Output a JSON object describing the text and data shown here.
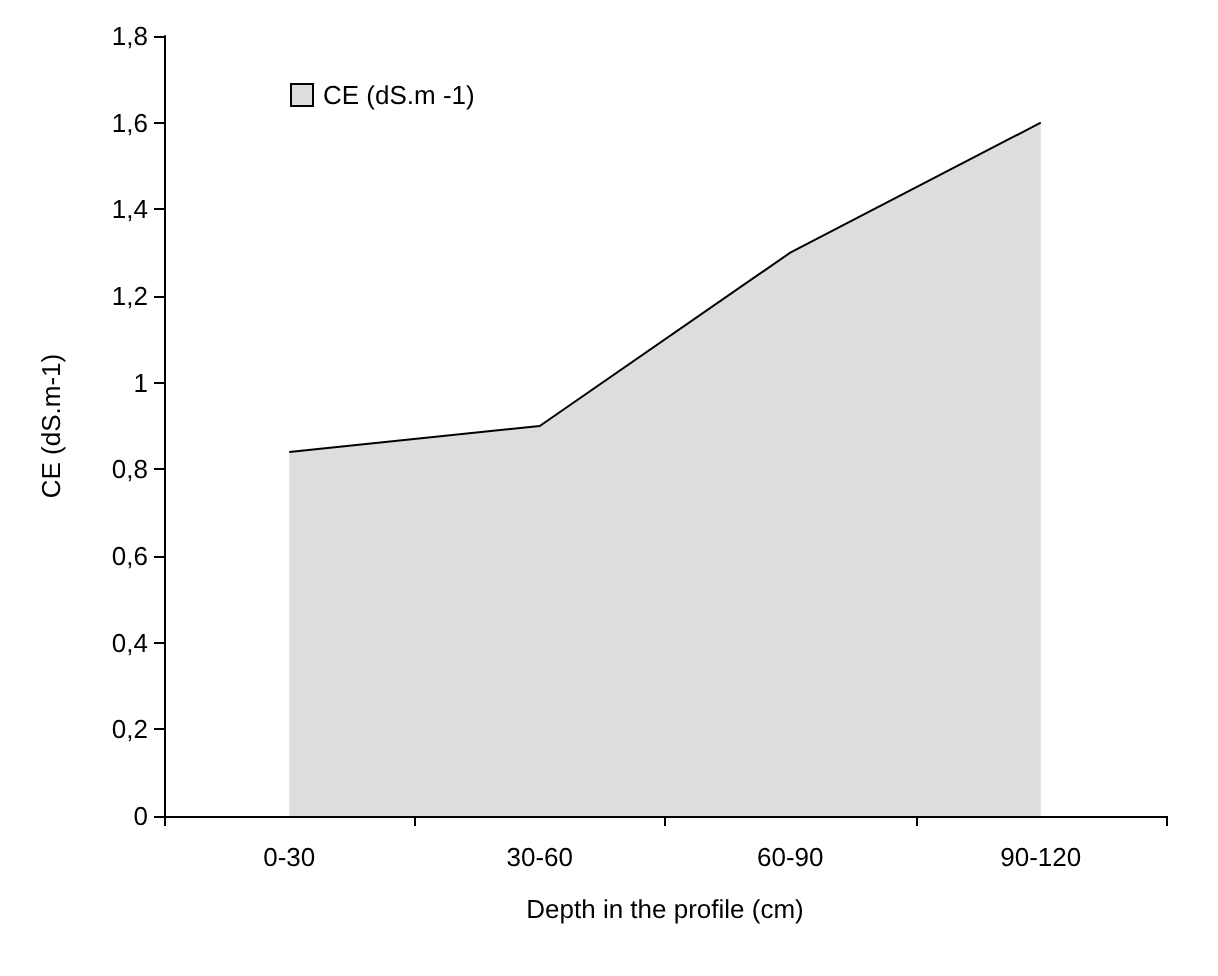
{
  "chart_data": {
    "type": "area",
    "xlabel": "Depth in the profile (cm)",
    "ylabel": "CE (dS.m-1)",
    "categories": [
      "0-30",
      "30-60",
      "60-90",
      "90-120"
    ],
    "series": [
      {
        "name": "CE (dS.m -1)",
        "color": "#dddddd",
        "values": [
          0.84,
          0.9,
          1.3,
          1.6
        ]
      }
    ],
    "ylim": [
      0,
      1.8
    ],
    "yticks": [
      0,
      {
        "value": 0.2,
        "label": "0,2"
      },
      {
        "value": 0.4,
        "label": "0,4"
      },
      {
        "value": 0.6,
        "label": "0,6"
      },
      {
        "value": 0.8,
        "label": "0,8"
      },
      1,
      {
        "value": 1.2,
        "label": "1,2"
      },
      {
        "value": 1.4,
        "label": "1,4"
      },
      {
        "value": 1.6,
        "label": "1,6"
      },
      {
        "value": 1.8,
        "label": "1,8"
      }
    ],
    "grid": false,
    "legend": "top left",
    "marker": "none"
  }
}
